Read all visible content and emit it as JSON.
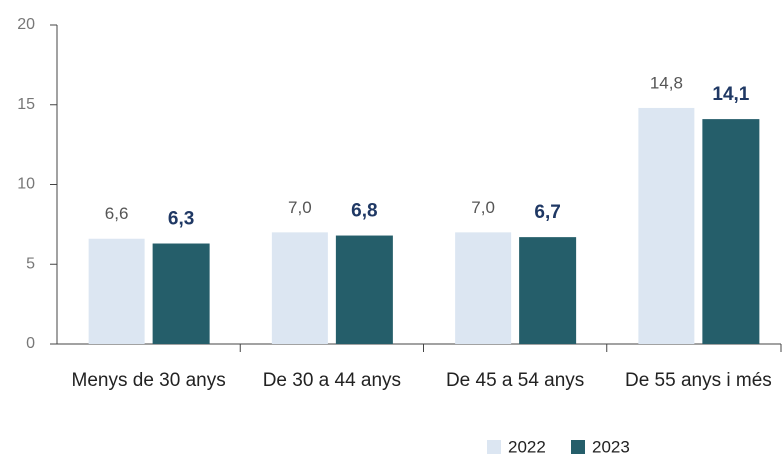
{
  "chart_data": {
    "type": "bar",
    "categories": [
      "Menys de 30 anys",
      "De 30 a 44 anys",
      "De 45 a 54 anys",
      "De 55 anys i més"
    ],
    "series": [
      {
        "name": "2022",
        "color": "#dce6f2",
        "values": [
          6.6,
          7.0,
          7.0,
          14.8
        ],
        "value_labels": [
          "6,6",
          "7,0",
          "7,0",
          "14,8"
        ]
      },
      {
        "name": "2023",
        "color": "#255e6a",
        "values": [
          6.3,
          6.8,
          6.7,
          14.1
        ],
        "value_labels": [
          "6,3",
          "6,8",
          "6,7",
          "14,1"
        ]
      }
    ],
    "ylim": [
      0,
      20
    ],
    "yticks": [
      0,
      5,
      10,
      15,
      20
    ],
    "legend": "bottom-right"
  }
}
